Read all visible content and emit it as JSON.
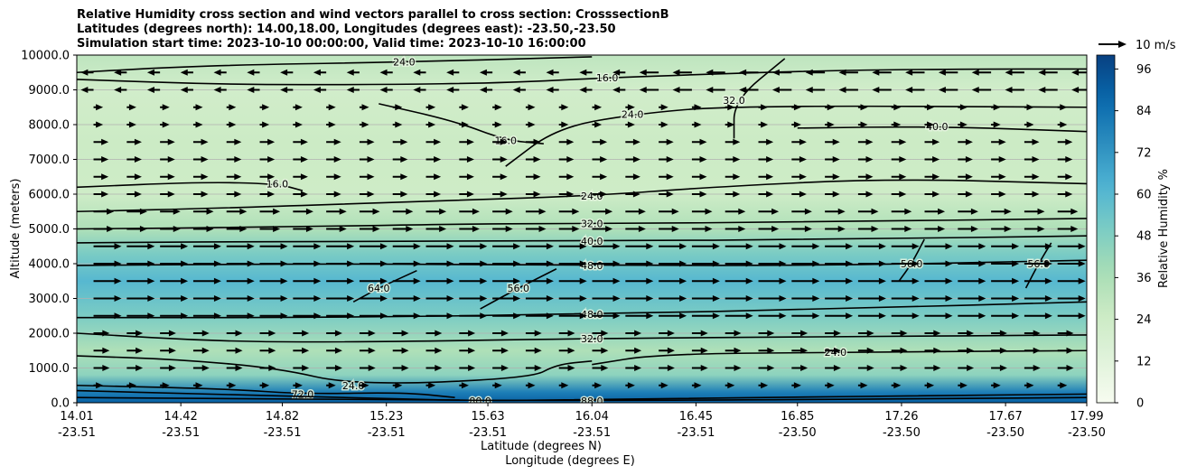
{
  "chart_data": {
    "type": "heatmap",
    "title_lines": [
      "Relative Humidity cross section and wind vectors parallel to cross section: CrosssectionB",
      "Latitudes (degrees north): 14.00,18.00, Longitudes (degrees east): -23.50,-23.50",
      "Simulation start time: 2023-10-10 00:00:00, Valid time: 2023-10-10 16:00:00"
    ],
    "ylabel": "Altitude (meters)",
    "xlabel_lines": [
      "Latitude (degrees N)",
      "Longitude (degrees E)"
    ],
    "ylim": [
      0,
      10000
    ],
    "yticks": [
      "0.0",
      "1000.0",
      "2000.0",
      "3000.0",
      "4000.0",
      "5000.0",
      "6000.0",
      "7000.0",
      "8000.0",
      "9000.0",
      "10000.0"
    ],
    "xlim": [
      14.01,
      17.99
    ],
    "xticks": [
      {
        "lat": "14.01",
        "lon": "-23.51"
      },
      {
        "lat": "14.42",
        "lon": "-23.51"
      },
      {
        "lat": "14.82",
        "lon": "-23.51"
      },
      {
        "lat": "15.23",
        "lon": "-23.51"
      },
      {
        "lat": "15.63",
        "lon": "-23.51"
      },
      {
        "lat": "16.04",
        "lon": "-23.51"
      },
      {
        "lat": "16.45",
        "lon": "-23.51"
      },
      {
        "lat": "16.85",
        "lon": "-23.50"
      },
      {
        "lat": "17.26",
        "lon": "-23.50"
      },
      {
        "lat": "17.67",
        "lon": "-23.50"
      },
      {
        "lat": "17.99",
        "lon": "-23.50"
      }
    ],
    "grid": "horizontal",
    "colorbar": {
      "label": "Relative Humidity %",
      "range": [
        0,
        100
      ],
      "ticks": [
        "0",
        "12",
        "24",
        "36",
        "48",
        "60",
        "72",
        "84",
        "96"
      ]
    },
    "quiver_key": "10 m/s",
    "humidity_profile": [
      {
        "alt": 0,
        "rh": 90
      },
      {
        "alt": 300,
        "rh": 80
      },
      {
        "alt": 800,
        "rh": 45
      },
      {
        "alt": 1500,
        "rh": 35
      },
      {
        "alt": 2500,
        "rh": 50
      },
      {
        "alt": 3500,
        "rh": 60
      },
      {
        "alt": 4300,
        "rh": 50
      },
      {
        "alt": 5000,
        "rh": 35
      },
      {
        "alt": 6000,
        "rh": 24
      },
      {
        "alt": 7500,
        "rh": 25
      },
      {
        "alt": 9000,
        "rh": 22
      },
      {
        "alt": 10000,
        "rh": 30
      }
    ],
    "contours": [
      {
        "label": "16.0",
        "points": [
          [
            14.01,
            9300
          ],
          [
            14.6,
            9150
          ],
          [
            15.2,
            9150
          ],
          [
            15.7,
            9200
          ],
          [
            16.1,
            9350
          ],
          [
            16.9,
            9550
          ],
          [
            17.5,
            9600
          ],
          [
            17.99,
            9600
          ]
        ]
      },
      {
        "label": "16.0",
        "points": [
          [
            15.2,
            8600
          ],
          [
            15.5,
            8100
          ],
          [
            15.7,
            7550
          ],
          [
            15.85,
            7450
          ]
        ]
      },
      {
        "label": "16.0",
        "points": [
          [
            14.01,
            6200
          ],
          [
            14.5,
            6350
          ],
          [
            14.8,
            6300
          ],
          [
            14.9,
            6100
          ]
        ]
      },
      {
        "label": "24.0",
        "points": [
          [
            14.01,
            5500
          ],
          [
            14.6,
            5600
          ],
          [
            15.4,
            5800
          ],
          [
            16.04,
            5950
          ],
          [
            16.5,
            6200
          ],
          [
            17.2,
            6450
          ],
          [
            17.99,
            6300
          ]
        ]
      },
      {
        "label": "24.0",
        "points": [
          [
            15.7,
            6800
          ],
          [
            15.9,
            7900
          ],
          [
            16.2,
            8300
          ],
          [
            16.6,
            8550
          ],
          [
            17.99,
            8500
          ]
        ]
      },
      {
        "label": "24.0",
        "points": [
          [
            14.01,
            9500
          ],
          [
            14.5,
            9700
          ],
          [
            15.3,
            9800
          ],
          [
            16.04,
            9950
          ]
        ]
      },
      {
        "label": "32.0",
        "points": [
          [
            14.01,
            5000
          ],
          [
            14.8,
            5050
          ],
          [
            15.6,
            5150
          ],
          [
            16.04,
            5150
          ],
          [
            16.9,
            5200
          ],
          [
            17.99,
            5300
          ]
        ]
      },
      {
        "label": "32.0",
        "points": [
          [
            16.6,
            7600
          ],
          [
            16.6,
            8700
          ],
          [
            16.8,
            9900
          ]
        ]
      },
      {
        "label": "40.0",
        "points": [
          [
            14.01,
            4600
          ],
          [
            15.0,
            4650
          ],
          [
            16.04,
            4650
          ],
          [
            17.0,
            4700
          ],
          [
            17.99,
            4800
          ]
        ]
      },
      {
        "label": "40.0",
        "points": [
          [
            16.85,
            7900
          ],
          [
            17.4,
            7950
          ],
          [
            17.99,
            7800
          ]
        ]
      },
      {
        "label": "48.0",
        "points": [
          [
            14.01,
            3950
          ],
          [
            15.0,
            4000
          ],
          [
            16.04,
            3950
          ],
          [
            17.0,
            3950
          ],
          [
            17.99,
            4100
          ]
        ]
      },
      {
        "label": "48.0",
        "points": [
          [
            14.01,
            2450
          ],
          [
            15.0,
            2450
          ],
          [
            16.04,
            2550
          ],
          [
            17.0,
            2700
          ],
          [
            17.99,
            2900
          ]
        ]
      },
      {
        "label": "56.0",
        "points": [
          [
            15.6,
            2700
          ],
          [
            15.75,
            3300
          ],
          [
            15.9,
            3850
          ]
        ]
      },
      {
        "label": "56.0",
        "points": [
          [
            17.25,
            3500
          ],
          [
            17.3,
            4000
          ],
          [
            17.35,
            4700
          ]
        ]
      },
      {
        "label": "56.0",
        "points": [
          [
            17.75,
            3300
          ],
          [
            17.8,
            4000
          ],
          [
            17.85,
            4600
          ]
        ]
      },
      {
        "label": "64.0",
        "points": [
          [
            15.1,
            2900
          ],
          [
            15.2,
            3300
          ],
          [
            15.35,
            3800
          ]
        ]
      },
      {
        "label": "32.0",
        "points": [
          [
            14.01,
            2000
          ],
          [
            14.6,
            1750
          ],
          [
            15.2,
            1750
          ],
          [
            16.04,
            1850
          ],
          [
            17.0,
            1900
          ],
          [
            17.99,
            1950
          ]
        ]
      },
      {
        "label": "24.0",
        "points": [
          [
            16.04,
            1100
          ],
          [
            16.3,
            1400
          ],
          [
            17.0,
            1450
          ],
          [
            17.99,
            1500
          ]
        ]
      },
      {
        "label": "24.0",
        "points": [
          [
            14.01,
            1350
          ],
          [
            14.4,
            1250
          ],
          [
            14.8,
            1000
          ],
          [
            15.1,
            500
          ],
          [
            15.8,
            700
          ],
          [
            15.9,
            1100
          ],
          [
            16.04,
            1200
          ]
        ]
      },
      {
        "label": "72.0",
        "points": [
          [
            14.01,
            500
          ],
          [
            14.6,
            400
          ],
          [
            14.9,
            250
          ],
          [
            15.3,
            300
          ],
          [
            15.5,
            150
          ]
        ]
      },
      {
        "label": "80.0",
        "points": [
          [
            14.01,
            350
          ],
          [
            14.5,
            250
          ],
          [
            15.1,
            150
          ],
          [
            15.6,
            50
          ],
          [
            16.04,
            100
          ],
          [
            17.99,
            250
          ]
        ]
      },
      {
        "label": "88.0",
        "points": [
          [
            14.01,
            150
          ],
          [
            15.0,
            100
          ],
          [
            16.04,
            50
          ],
          [
            17.99,
            150
          ]
        ]
      }
    ]
  }
}
